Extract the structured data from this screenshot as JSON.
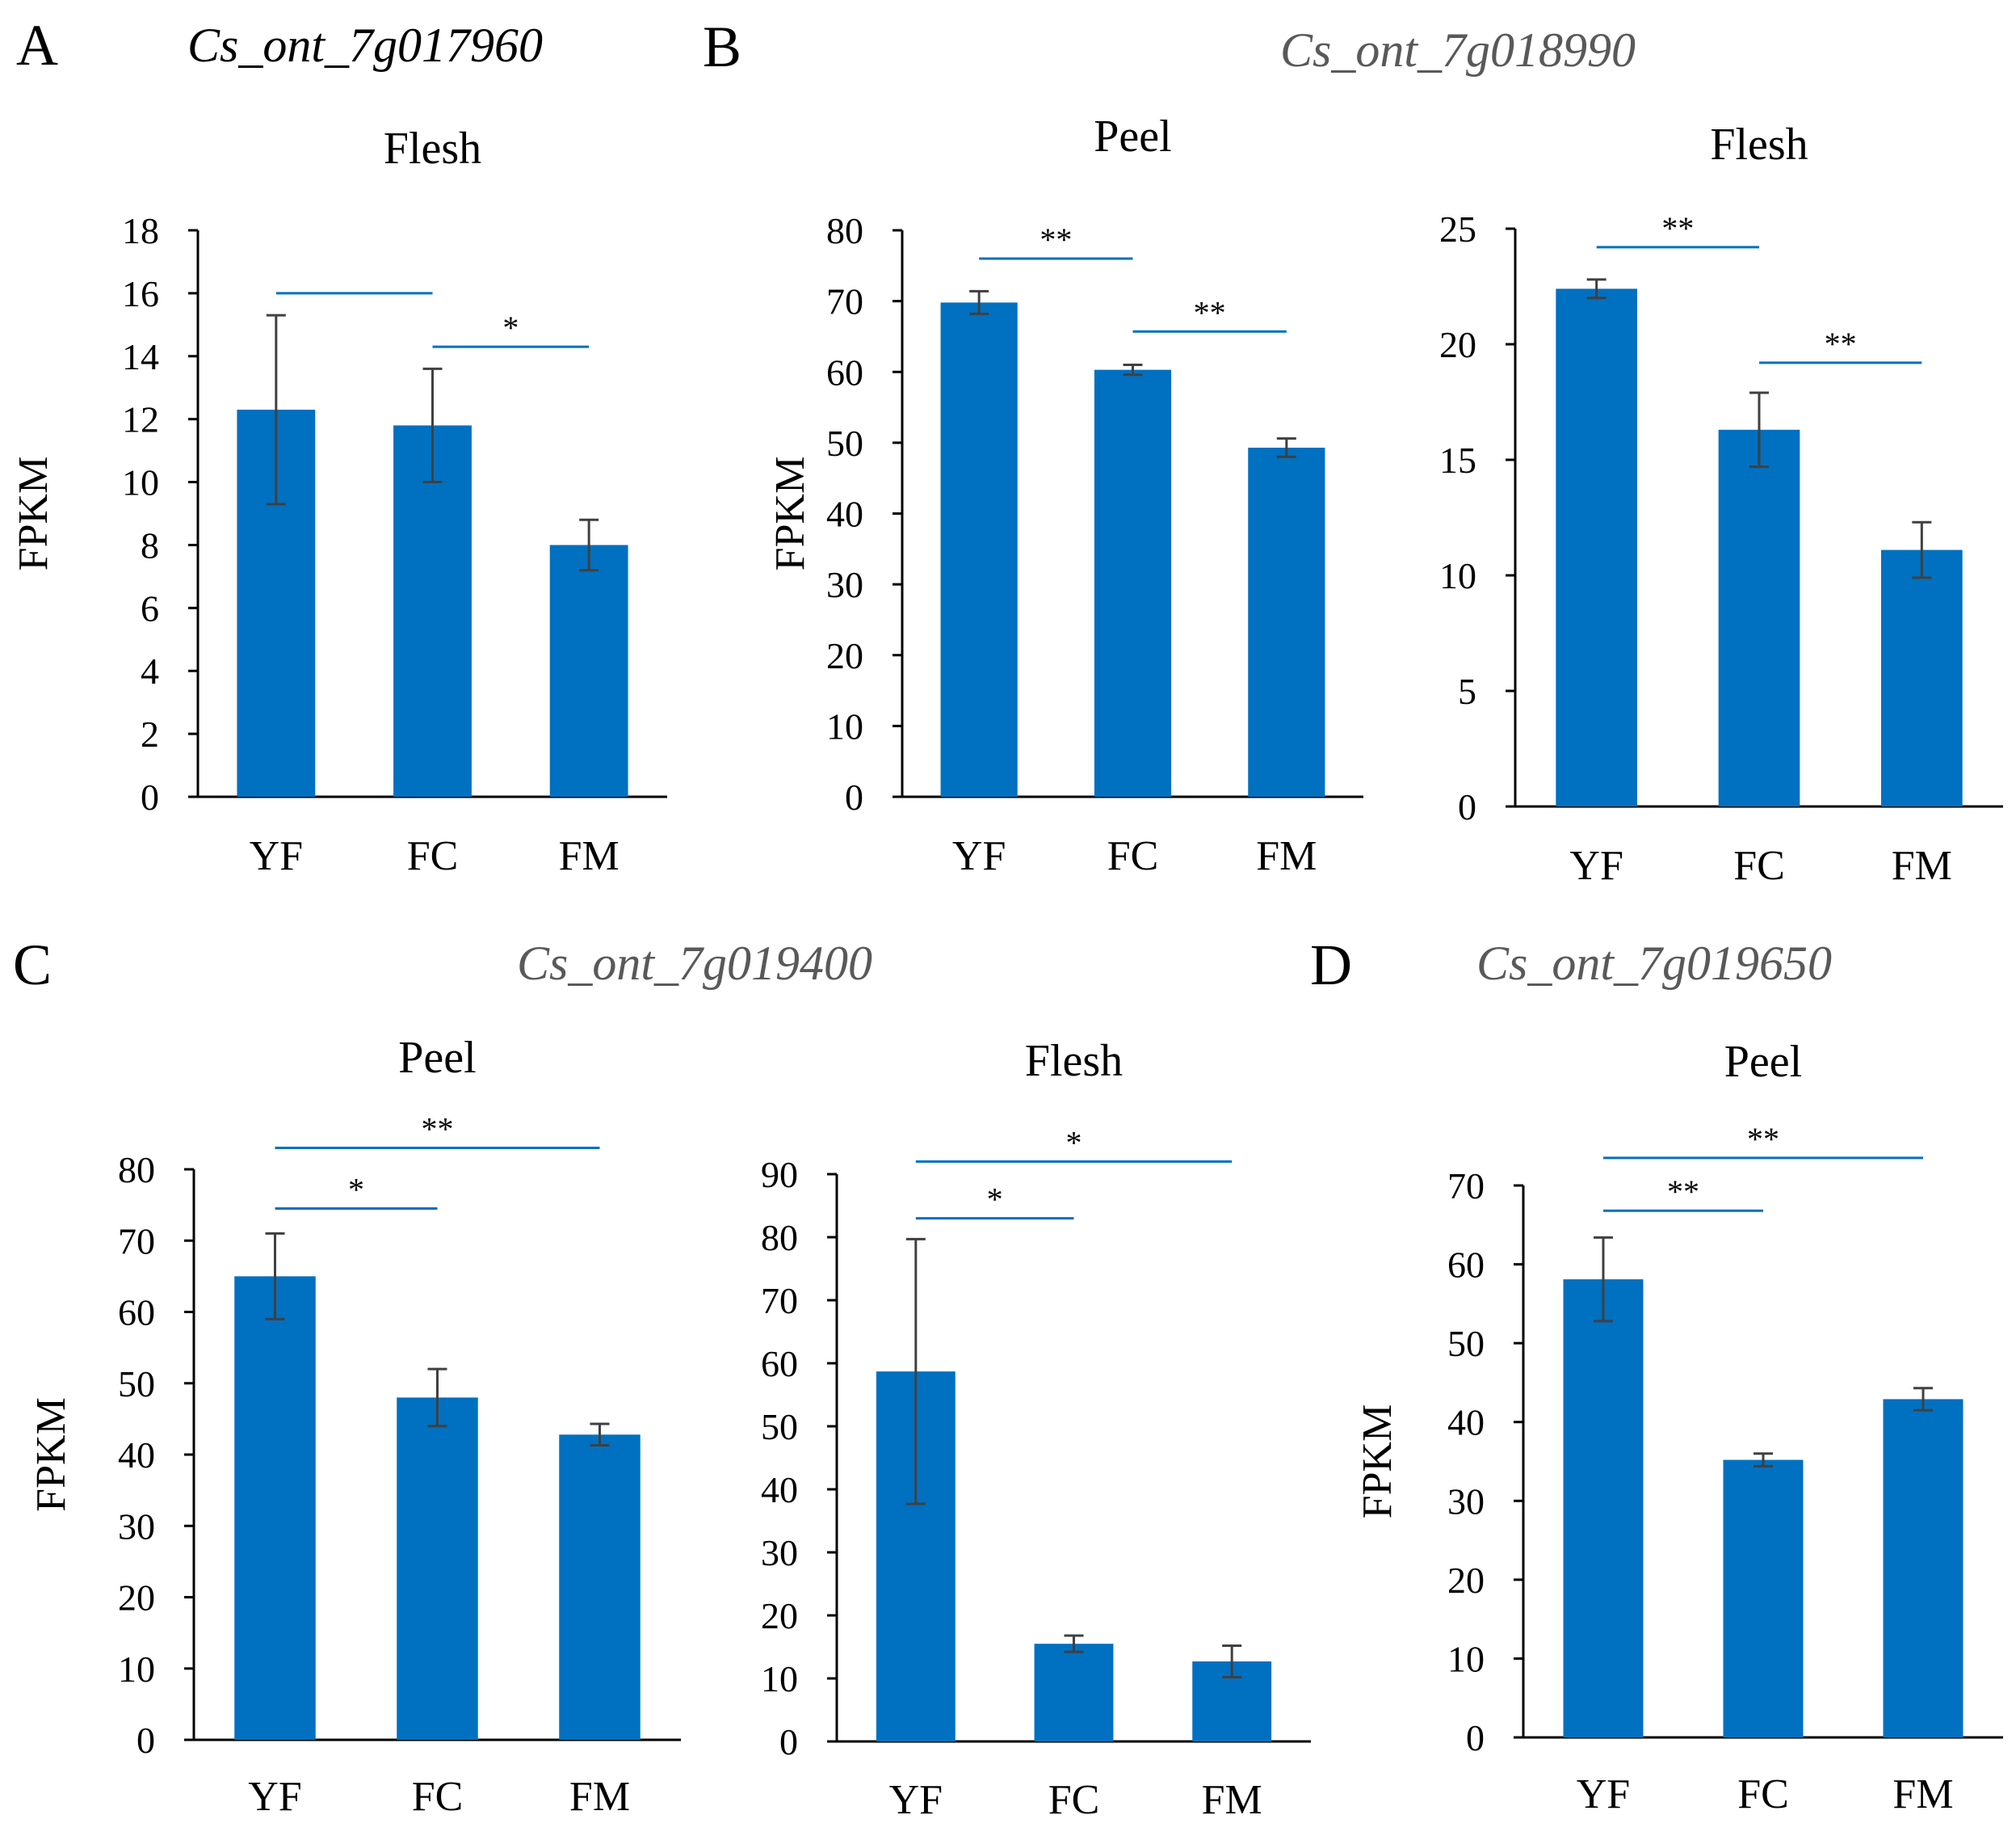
{
  "colors": {
    "bar": "#0070c0",
    "error_bar": "#404040",
    "axis": "#000000",
    "sig_line": "#0070c0",
    "gene_dark": "#000000",
    "gene_gray": "#595959"
  },
  "panels": [
    {
      "letter": "A",
      "gene": "Cs_ont_7g017960"
    },
    {
      "letter": "B",
      "gene": "Cs_ont_7g018990"
    },
    {
      "letter": "C",
      "gene": "Cs_ont_7g019400"
    },
    {
      "letter": "D",
      "gene": "Cs_ont_7g019650"
    }
  ],
  "chart_data": [
    {
      "type": "bar",
      "panel": "A",
      "gene": "Cs_ont_7g017960",
      "title": "Flesh",
      "xlabel": "",
      "ylabel": "FPKM",
      "categories": [
        "YF",
        "FC",
        "FM"
      ],
      "values": [
        12.3,
        11.8,
        8.0
      ],
      "errors": [
        3.0,
        1.8,
        0.8
      ],
      "ylim": [
        0,
        18
      ],
      "yticks": [
        0,
        2,
        4,
        6,
        8,
        10,
        12,
        14,
        16,
        18
      ],
      "significance": [
        {
          "from": 0,
          "to": 1,
          "label": "",
          "level": 16
        },
        {
          "from": 1,
          "to": 2,
          "label": "*",
          "level": 14.3
        }
      ]
    },
    {
      "type": "bar",
      "panel": "B",
      "gene": "Cs_ont_7g018990",
      "title": "Peel",
      "xlabel": "",
      "ylabel": "FPKM",
      "categories": [
        "YF",
        "FC",
        "FM"
      ],
      "values": [
        69.8,
        60.3,
        49.3
      ],
      "errors": [
        1.6,
        0.7,
        1.3
      ],
      "ylim": [
        0,
        80
      ],
      "yticks": [
        0,
        10,
        20,
        30,
        40,
        50,
        60,
        70,
        80
      ],
      "significance": [
        {
          "from": 0,
          "to": 1,
          "label": "**",
          "level": 76
        },
        {
          "from": 1,
          "to": 2,
          "label": "**",
          "level": 65.7
        }
      ]
    },
    {
      "type": "bar",
      "panel": "B",
      "gene": "Cs_ont_7g018990",
      "title": "Flesh",
      "xlabel": "",
      "ylabel": "",
      "categories": [
        "YF",
        "FC",
        "FM"
      ],
      "values": [
        22.4,
        16.3,
        11.1
      ],
      "errors": [
        0.4,
        1.6,
        1.2
      ],
      "ylim": [
        0,
        25
      ],
      "yticks": [
        0,
        5,
        10,
        15,
        20,
        25
      ],
      "significance": [
        {
          "from": 0,
          "to": 1,
          "label": "**",
          "level": 24.2
        },
        {
          "from": 1,
          "to": 2,
          "label": "**",
          "level": 19.2
        }
      ]
    },
    {
      "type": "bar",
      "panel": "C",
      "gene": "Cs_ont_7g019400",
      "title": "Peel",
      "xlabel": "",
      "ylabel": "FPKM",
      "categories": [
        "YF",
        "FC",
        "FM"
      ],
      "values": [
        65.0,
        48.0,
        42.8
      ],
      "errors": [
        6.0,
        4.0,
        1.5
      ],
      "ylim": [
        0,
        80
      ],
      "yticks": [
        0,
        10,
        20,
        30,
        40,
        50,
        60,
        70,
        80
      ],
      "significance": [
        {
          "from": 0,
          "to": 1,
          "label": "*",
          "level": 74.5
        },
        {
          "from": 0,
          "to": 2,
          "label": "**",
          "level": 83
        }
      ]
    },
    {
      "type": "bar",
      "panel": "C",
      "gene": "Cs_ont_7g019400",
      "title": "Flesh",
      "xlabel": "",
      "ylabel": "",
      "categories": [
        "YF",
        "FC",
        "FM"
      ],
      "values": [
        58.7,
        15.5,
        12.7
      ],
      "errors": [
        21.0,
        1.3,
        2.5
      ],
      "ylim": [
        0,
        90
      ],
      "yticks": [
        0,
        10,
        20,
        30,
        40,
        50,
        60,
        70,
        80,
        90
      ],
      "significance": [
        {
          "from": 0,
          "to": 1,
          "label": "*",
          "level": 83
        },
        {
          "from": 0,
          "to": 2,
          "label": "*",
          "level": 92
        }
      ]
    },
    {
      "type": "bar",
      "panel": "D",
      "gene": "Cs_ont_7g019650",
      "title": "Peel",
      "xlabel": "",
      "ylabel": "FPKM",
      "categories": [
        "YF",
        "FC",
        "FM"
      ],
      "values": [
        58.1,
        35.2,
        42.9
      ],
      "errors": [
        5.3,
        0.8,
        1.4
      ],
      "ylim": [
        0,
        70
      ],
      "yticks": [
        0,
        10,
        20,
        30,
        40,
        50,
        60,
        70
      ],
      "significance": [
        {
          "from": 0,
          "to": 1,
          "label": "**",
          "level": 66.8
        },
        {
          "from": 0,
          "to": 2,
          "label": "**",
          "level": 73.5
        }
      ]
    }
  ]
}
